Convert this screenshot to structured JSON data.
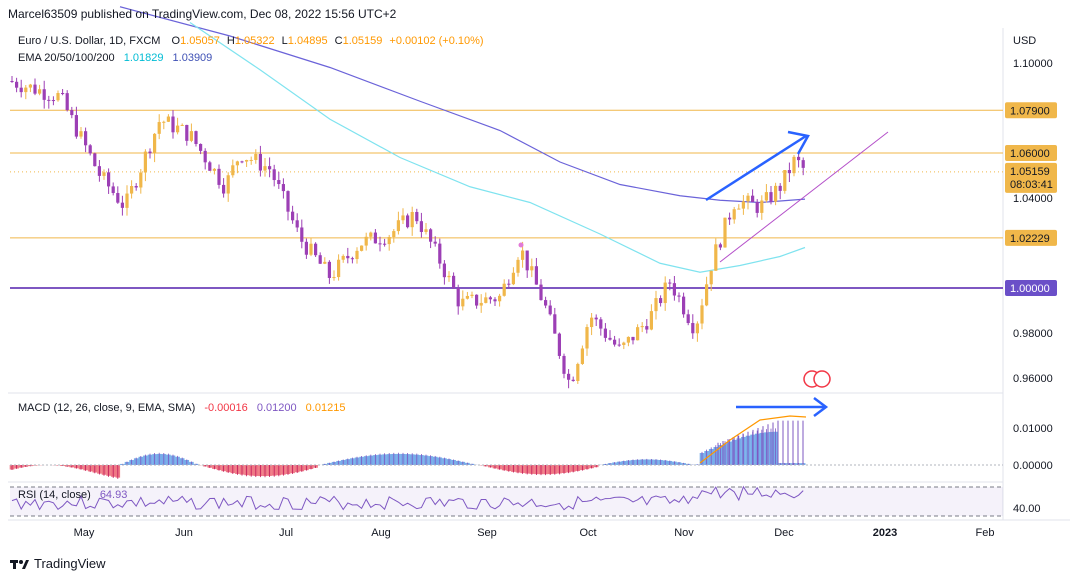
{
  "publisher": "Marcel63509 published on TradingView.com, Dec 08, 2022 15:56 UTC+2",
  "symbol": "Euro / U.S. Dollar, 1D, FXCM",
  "ohlc": {
    "o_label": "O",
    "o": "1.05057",
    "h_label": "H",
    "h": "1.05322",
    "l_label": "L",
    "l": "1.04895",
    "c_label": "C",
    "c": "1.05159",
    "chg": "+0.00102 (+0.10%)"
  },
  "ema": {
    "label": "EMA 20/50/100/200",
    "v1": "1.01829",
    "v2": "1.03909"
  },
  "currency": "USD",
  "macd_legend": {
    "label": "MACD (12, 26, close, 9, EMA, SMA)",
    "hist": "-0.00016",
    "macd": "0.01200",
    "signal": "0.01215"
  },
  "rsi_legend": {
    "label": "RSI (14, close)",
    "value": "64.93"
  },
  "brand": "TradingView",
  "colors": {
    "up": "#f0b74a",
    "down": "#9c3fb5",
    "ema20": "#7fe3ef",
    "ema200": "#6b63d9",
    "hline": "#f0b74a",
    "parity": "#7e57c2",
    "arrow": "#2962ff",
    "trend": "#b44fc9"
  },
  "chart_data": [
    {
      "type": "candlestick",
      "title": "Euro / U.S. Dollar, 1D, FXCM",
      "y_axis": {
        "unit": "USD",
        "range": [
          0.952,
          1.108
        ],
        "ticks": [
          "1.10000",
          "1.04000",
          "0.98000",
          "0.96000"
        ]
      },
      "x_ticks": [
        "May",
        "Jun",
        "Jul",
        "Aug",
        "Sep",
        "Oct",
        "Nov",
        "Dec",
        "2023",
        "Feb"
      ],
      "price_labels": [
        "1.07900",
        "1.06000",
        "1.05159",
        "08:03:41",
        "1.02229",
        "1.00000"
      ],
      "horizontal_levels": [
        1.079,
        1.06,
        1.02229,
        1.0
      ],
      "last_price": 1.05159,
      "countdown": "08:03:41",
      "series": [
        {
          "name": "EMA 20",
          "values": []
        },
        {
          "name": "EMA 200",
          "values": []
        }
      ]
    },
    {
      "type": "histogram",
      "title": "MACD (12, 26, close, 9, EMA, SMA)",
      "y_axis": {
        "range": [
          -0.0045,
          0.0135
        ],
        "ticks": [
          "0.01000",
          "0.00000"
        ]
      },
      "values": {
        "histogram": -0.00016,
        "macd": 0.012,
        "signal": 0.01215
      }
    },
    {
      "type": "line",
      "title": "RSI (14, close)",
      "y_axis": {
        "ticks": [
          "40.00"
        ]
      },
      "last": 64.93
    }
  ]
}
